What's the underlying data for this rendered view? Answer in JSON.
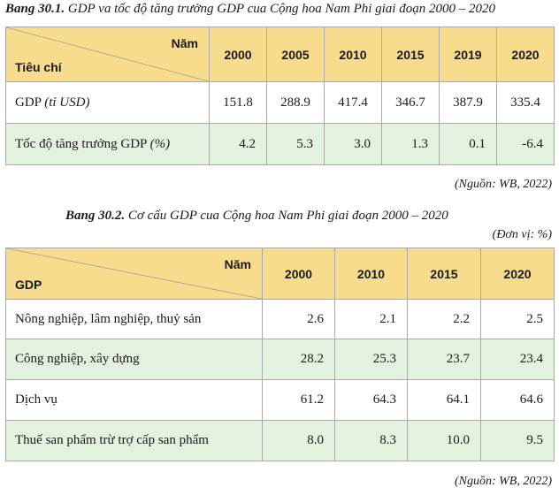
{
  "table1": {
    "caption_bold": "Bang 30.1.",
    "caption_text": " GDP va tốc độ tăng trưởng GDP cua Cộng hoa Nam Phi giai đoạn 2000 – 2020",
    "corner_top": "Năm",
    "corner_bottom": "Tiêu chí",
    "years": [
      "2000",
      "2005",
      "2010",
      "2015",
      "2019",
      "2020"
    ],
    "rows": [
      {
        "label_main": "GDP ",
        "label_unit": "(tỉ USD)",
        "values": [
          "151.8",
          "288.9",
          "417.4",
          "346.7",
          "387.9",
          "335.4"
        ]
      },
      {
        "label_main": "Tốc độ tăng trưởng GDP ",
        "label_unit": "(%)",
        "values": [
          "4.2",
          "5.3",
          "3.0",
          "1.3",
          "0.1",
          "-6.4"
        ]
      }
    ],
    "source": "(Nguồn: WB, 2022)"
  },
  "table2": {
    "caption_bold": "Bang 30.2.",
    "caption_text": " Cơ cấu GDP cua Cộng hoa Nam Phi giai đoạn 2000 – 2020",
    "unit": "(Đơn vị: %)",
    "corner_top": "Năm",
    "corner_bottom": "GDP",
    "years": [
      "2000",
      "2010",
      "2015",
      "2020"
    ],
    "rows": [
      {
        "label": "Nông nghiệp, lâm nghiệp, thuỷ sản",
        "values": [
          "2.6",
          "2.1",
          "2.2",
          "2.5"
        ]
      },
      {
        "label": "Công nghiệp, xây dựng",
        "values": [
          "28.2",
          "25.3",
          "23.7",
          "23.4"
        ]
      },
      {
        "label": "Dịch vụ",
        "values": [
          "61.2",
          "64.3",
          "64.1",
          "64.6"
        ]
      },
      {
        "label": "Thuế san phẩm trừ trợ cấp san phẩm",
        "values": [
          "8.0",
          "8.3",
          "10.0",
          "9.5"
        ]
      }
    ],
    "source": "(Nguồn: WB, 2022)"
  }
}
